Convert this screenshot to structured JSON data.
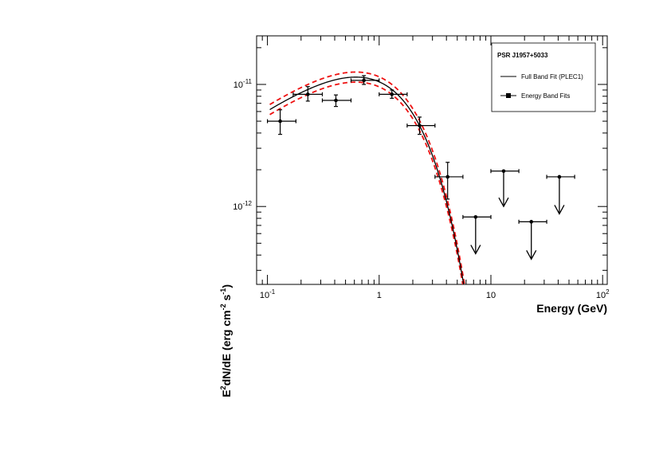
{
  "chart_data": {
    "type": "scatter",
    "title": "",
    "xlabel": "Energy (GeV)",
    "ylabel_parts": [
      "E",
      "2",
      "dN/dE (erg cm",
      "-2",
      " s",
      "-1",
      ")"
    ],
    "x_scale": "log",
    "y_scale": "log",
    "xlim": [
      0.08,
      110
    ],
    "ylim": [
      2.3e-13,
      2.5e-11
    ],
    "x_ticks": [
      {
        "value": 0.1,
        "base": "10",
        "exp": "-1"
      },
      {
        "value": 1,
        "base": "1",
        "exp": ""
      },
      {
        "value": 10,
        "base": "10",
        "exp": ""
      },
      {
        "value": 100,
        "base": "10",
        "exp": "2"
      }
    ],
    "y_ticks": [
      {
        "value": 1e-12,
        "base": "10",
        "exp": "-12"
      },
      {
        "value": 1e-11,
        "base": "10",
        "exp": "-11"
      }
    ],
    "legend": {
      "position": "top-right",
      "title": "PSR J1957+5033",
      "entries": [
        "Full Band Fit (PLEC1)",
        "Energy Band Fits"
      ]
    },
    "series": [
      {
        "name": "Energy Band Fits",
        "points": [
          {
            "x": 0.13,
            "y": 5e-12,
            "xlo": 0.1,
            "xhi": 0.18,
            "ylo": 3.9e-12,
            "yhi": 6.2e-12
          },
          {
            "x": 0.23,
            "y": 8.3e-12,
            "xlo": 0.17,
            "xhi": 0.31,
            "ylo": 7.3e-12,
            "yhi": 9.6e-12
          },
          {
            "x": 0.41,
            "y": 7.4e-12,
            "xlo": 0.31,
            "xhi": 0.56,
            "ylo": 6.6e-12,
            "yhi": 8.2e-12
          },
          {
            "x": 0.73,
            "y": 1.08e-11,
            "xlo": 0.56,
            "xhi": 1.0,
            "ylo": 1e-11,
            "yhi": 1.18e-11
          },
          {
            "x": 1.3,
            "y": 8.3e-12,
            "xlo": 1.0,
            "xhi": 1.78,
            "ylo": 7.7e-12,
            "yhi": 9e-12
          },
          {
            "x": 2.3,
            "y": 4.6e-12,
            "xlo": 1.78,
            "xhi": 3.16,
            "ylo": 3.9e-12,
            "yhi": 5.4e-12
          },
          {
            "x": 4.1,
            "y": 1.75e-12,
            "xlo": 3.16,
            "xhi": 5.62,
            "ylo": 1.15e-12,
            "yhi": 2.3e-12
          }
        ]
      },
      {
        "name": "Upper limits",
        "upper_limits": [
          {
            "x": 7.3,
            "y": 8.2e-13,
            "xlo": 5.62,
            "xhi": 10.0,
            "arrow_to": 4.1e-13
          },
          {
            "x": 13.0,
            "y": 1.95e-12,
            "xlo": 10.0,
            "xhi": 17.8,
            "arrow_to": 1e-12
          },
          {
            "x": 23.0,
            "y": 7.5e-13,
            "xlo": 17.8,
            "xhi": 31.6,
            "arrow_to": 3.7e-13
          },
          {
            "x": 41.0,
            "y": 1.75e-12,
            "xlo": 31.6,
            "xhi": 56.2,
            "arrow_to": 8.7e-13
          }
        ]
      },
      {
        "name": "Full Band Fit (PLEC1)",
        "model": {
          "norm": 1.05e-11,
          "index": 1.35,
          "e0": 1.0,
          "cutoff": 0.95
        },
        "x_range": [
          0.105,
          7.0
        ]
      },
      {
        "name": "Fit error band",
        "color": "#ee1111",
        "offsets": [
          1.1,
          0.91
        ],
        "x_range": [
          0.105,
          7.0
        ]
      }
    ],
    "grid": false
  }
}
